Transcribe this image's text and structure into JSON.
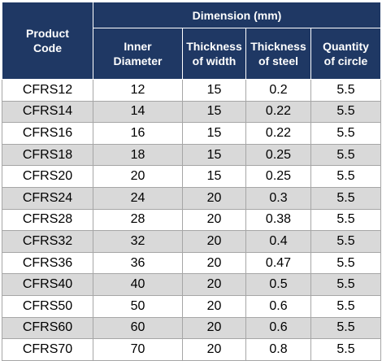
{
  "header": {
    "product_code": "Product\nCode",
    "group": "Dimension (mm)",
    "columns": [
      "Inner\nDiameter",
      "Thickness\nof width",
      "Thickness\nof steel",
      "Quantity\nof circle"
    ]
  },
  "rows": [
    [
      "CFRS12",
      "12",
      "15",
      "0.2",
      "5.5"
    ],
    [
      "CFRS14",
      "14",
      "15",
      "0.22",
      "5.5"
    ],
    [
      "CFRS16",
      "16",
      "15",
      "0.22",
      "5.5"
    ],
    [
      "CFRS18",
      "18",
      "15",
      "0.25",
      "5.5"
    ],
    [
      "CFRS20",
      "20",
      "15",
      "0.25",
      "5.5"
    ],
    [
      "CFRS24",
      "24",
      "20",
      "0.3",
      "5.5"
    ],
    [
      "CFRS28",
      "28",
      "20",
      "0.38",
      "5.5"
    ],
    [
      "CFRS32",
      "32",
      "20",
      "0.4",
      "5.5"
    ],
    [
      "CFRS36",
      "36",
      "20",
      "0.47",
      "5.5"
    ],
    [
      "CFRS40",
      "40",
      "20",
      "0.5",
      "5.5"
    ],
    [
      "CFRS50",
      "50",
      "20",
      "0.6",
      "5.5"
    ],
    [
      "CFRS60",
      "60",
      "20",
      "0.6",
      "5.5"
    ],
    [
      "CFRS70",
      "70",
      "20",
      "0.8",
      "5.5"
    ]
  ],
  "colors": {
    "header_bg": "#1f3864",
    "header_text": "#ffffff",
    "row_alt": "#d9d9d9"
  }
}
